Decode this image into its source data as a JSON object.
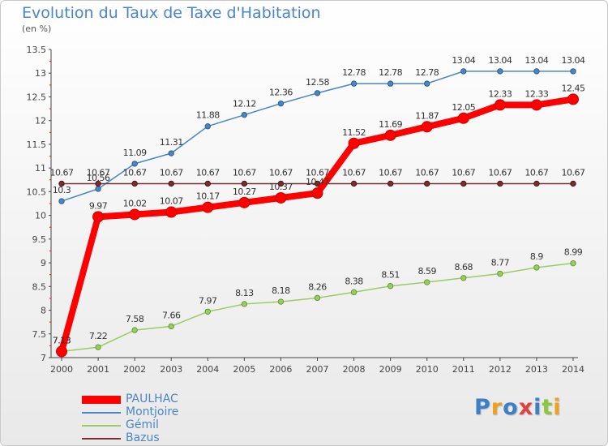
{
  "title": "Evolution du Taux de Taxe d'Habitation",
  "subtitle": "(en %)",
  "chart_data": {
    "type": "line",
    "title": "Evolution du Taux de Taxe d'Habitation",
    "subtitle": "(en %)",
    "xlabel": "",
    "ylabel": "",
    "x": [
      "2000",
      "2001",
      "2002",
      "2003",
      "2004",
      "2005",
      "2006",
      "2007",
      "2008",
      "2009",
      "2010",
      "2011",
      "2012",
      "2013",
      "2014"
    ],
    "ylim": [
      7,
      13.5
    ],
    "yticks": [
      "7",
      "7.5",
      "8",
      "8.5",
      "9",
      "9.5",
      "10",
      "10.5",
      "11",
      "11.5",
      "12",
      "12.5",
      "13",
      "13.5"
    ],
    "grid": false,
    "legend_position": "bottom-left",
    "series": [
      {
        "name": "PAULHAC",
        "color": "#ff0000",
        "values": [
          7.13,
          9.97,
          10.02,
          10.07,
          10.17,
          10.27,
          10.37,
          10.47,
          11.52,
          11.69,
          11.87,
          12.05,
          12.33,
          12.33,
          12.45
        ],
        "labels": [
          "7.13",
          "9.97",
          "10.02",
          "10.07",
          "10.17",
          "10.27",
          "10.37",
          "10.47",
          "11.52",
          "11.69",
          "11.87",
          "12.05",
          "12.33",
          "12.33",
          "12.45"
        ]
      },
      {
        "name": "Montjoire",
        "color": "#4a86c5",
        "values": [
          10.3,
          10.56,
          11.09,
          11.31,
          11.88,
          12.12,
          12.36,
          12.58,
          12.78,
          12.78,
          12.78,
          13.04,
          13.04,
          13.04,
          13.04
        ],
        "labels": [
          "10.3",
          "10.56",
          "11.09",
          "11.31",
          "11.88",
          "12.12",
          "12.36",
          "12.58",
          "12.78",
          "12.78",
          "12.78",
          "13.04",
          "13.04",
          "13.04",
          "13.04"
        ]
      },
      {
        "name": "Gémil",
        "color": "#99cc66",
        "values": [
          7.13,
          7.22,
          7.58,
          7.66,
          7.97,
          8.13,
          8.18,
          8.26,
          8.38,
          8.51,
          8.59,
          8.68,
          8.77,
          8.9,
          8.99
        ],
        "labels": [
          "7.13",
          "7.22",
          "7.58",
          "7.66",
          "7.97",
          "8.13",
          "8.18",
          "8.26",
          "8.38",
          "8.51",
          "8.59",
          "8.68",
          "8.77",
          "8.9",
          "8.99"
        ]
      },
      {
        "name": "Bazus",
        "color": "#7a2e2e",
        "values": [
          10.67,
          10.67,
          10.67,
          10.67,
          10.67,
          10.67,
          10.67,
          10.67,
          10.67,
          10.67,
          10.67,
          10.67,
          10.67,
          10.67,
          10.67
        ],
        "labels": [
          "10.67",
          "10.67",
          "10.67",
          "10.67",
          "10.67",
          "10.67",
          "10.67",
          "10.67",
          "10.67",
          "10.67",
          "10.67",
          "10.67",
          "10.67",
          "10.67",
          "10.67"
        ]
      }
    ]
  },
  "legend": [
    {
      "label": "PAULHAC",
      "color": "#ff0000"
    },
    {
      "label": "Montjoire",
      "color": "#4a86c5"
    },
    {
      "label": "Gémil",
      "color": "#99cc66"
    },
    {
      "label": "Bazus",
      "color": "#7a2e2e"
    }
  ],
  "logo": {
    "text": "Proxiti",
    "letters": [
      {
        "ch": "P",
        "color": "#3b7fc4"
      },
      {
        "ch": "r",
        "color": "#f0a020"
      },
      {
        "ch": "o",
        "color": "#3b7fc4"
      },
      {
        "ch": "x",
        "color": "#e04040"
      },
      {
        "ch": "i",
        "color": "#3b7fc4"
      },
      {
        "ch": "t",
        "color": "#8cc63f"
      },
      {
        "ch": "i",
        "color": "#f0a020"
      }
    ]
  }
}
